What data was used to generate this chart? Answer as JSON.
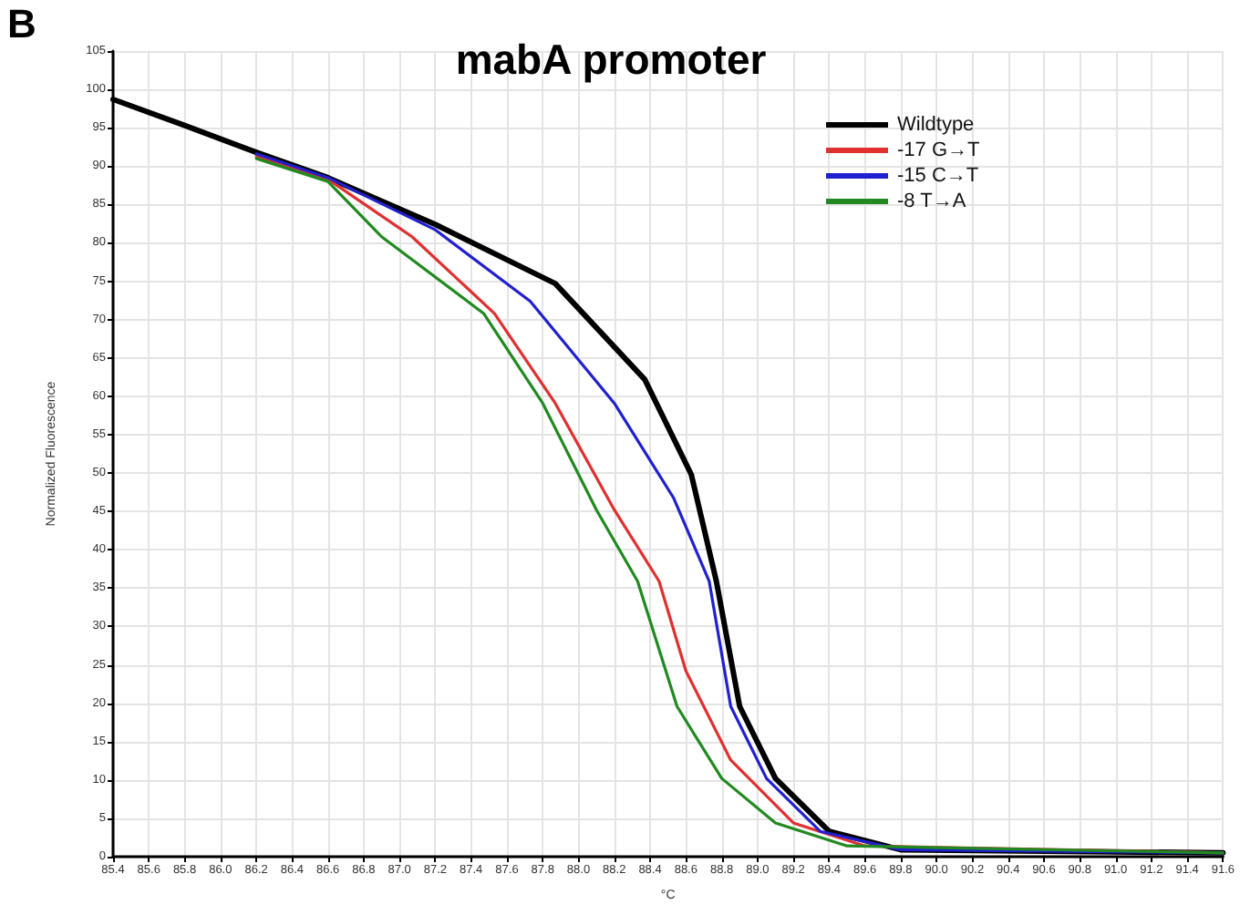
{
  "chart_data": {
    "type": "line",
    "title": "mabA promoter",
    "xlabel": "°C",
    "ylabel": "Normalized Fluorescence",
    "annotations": [
      "B"
    ],
    "xlim": [
      85.4,
      91.6
    ],
    "xticks": [
      85.4,
      85.6,
      85.8,
      {
        "value": 86,
        "label": "86.0"
      },
      86.2,
      86.4,
      86.6,
      86.8,
      {
        "value": 87,
        "label": "87.0"
      },
      87.2,
      87.4,
      87.6,
      87.8,
      {
        "value": 88,
        "label": "88.0"
      },
      88.2,
      88.4,
      88.6,
      88.8,
      {
        "value": 89,
        "label": "89.0"
      },
      89.2,
      89.4,
      89.6,
      89.8,
      {
        "value": 90,
        "label": "90.0"
      },
      90.2,
      90.4,
      90.6,
      90.8,
      {
        "value": 91,
        "label": "91.0"
      },
      91.2,
      91.4,
      91.6
    ],
    "ylim": [
      0,
      105
    ],
    "yticks": [
      0,
      5,
      10,
      15,
      20,
      25,
      30,
      35,
      40,
      45,
      50,
      55,
      60,
      65,
      70,
      75,
      80,
      85,
      90,
      95,
      100,
      105
    ],
    "grid": true,
    "legend": "top right",
    "marker": "none",
    "line_style": "solid",
    "series": [
      {
        "name": "Wildtype",
        "color": "#000000",
        "x": [
          85.4,
          85.8,
          86.2,
          86.6,
          87.2,
          87.87,
          88.37,
          88.63,
          88.77,
          88.9,
          89.1,
          89.4,
          89.8,
          91.6
        ],
        "values": [
          98.7,
          95.3,
          91.8,
          88.5,
          82.4,
          74.7,
          62.2,
          49.8,
          35.9,
          19.6,
          10.2,
          3.3,
          0.9,
          0.5
        ]
      },
      {
        "name": "-17 G→T",
        "color": "#e03030",
        "x": [
          86.2,
          86.6,
          87.07,
          87.53,
          87.87,
          88.2,
          88.45,
          88.6,
          88.85,
          89.2,
          89.6,
          91.6
        ],
        "values": [
          91.3,
          88.3,
          80.8,
          70.8,
          59.1,
          45.2,
          35.9,
          24.2,
          12.6,
          4.4,
          1.4,
          0.5
        ]
      },
      {
        "name": "-15 C→T",
        "color": "#2020d0",
        "x": [
          86.2,
          86.6,
          87.2,
          87.73,
          88.2,
          88.53,
          88.73,
          88.85,
          89.05,
          89.35,
          89.8,
          91.6
        ],
        "values": [
          91.6,
          88.5,
          81.7,
          72.4,
          59.1,
          46.8,
          35.9,
          19.6,
          10.2,
          3.3,
          0.9,
          0.5
        ]
      },
      {
        "name": "-8 T→A",
        "color": "#208a20",
        "x": [
          86.2,
          86.6,
          86.9,
          87.47,
          87.8,
          88.1,
          88.33,
          88.55,
          88.8,
          89.1,
          89.5,
          91.6
        ],
        "values": [
          91.0,
          88.0,
          80.8,
          70.8,
          59.1,
          45.2,
          35.9,
          19.6,
          10.2,
          4.4,
          1.4,
          0.5
        ]
      }
    ]
  }
}
